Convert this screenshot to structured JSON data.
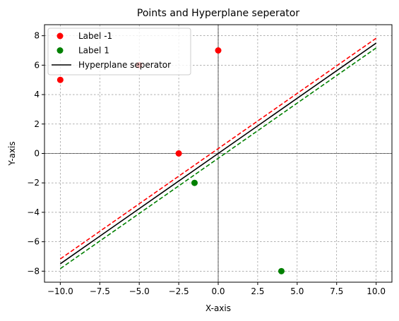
{
  "chart_data": {
    "type": "scatter",
    "title": "Points and Hyperplane seperator",
    "xlabel": "X-axis",
    "ylabel": "Y-axis",
    "xlim": [
      -11,
      11
    ],
    "ylim": [
      -8.75,
      8.75
    ],
    "xticks": [
      -10,
      -7.5,
      -5,
      -2.5,
      0,
      2.5,
      5,
      7.5,
      10
    ],
    "xtick_labels": [
      "−10.0",
      "−7.5",
      "−5.0",
      "−2.5",
      "0.0",
      "2.5",
      "5.0",
      "7.5",
      "10.0"
    ],
    "yticks": [
      -8,
      -6,
      -4,
      -2,
      0,
      2,
      4,
      6,
      8
    ],
    "ytick_labels": [
      "−8",
      "−6",
      "−4",
      "−2",
      "0",
      "2",
      "4",
      "6",
      "8"
    ],
    "grid": true,
    "legend_position": "top-left",
    "series": [
      {
        "name": "Label -1",
        "kind": "scatter",
        "color": "#ff0000",
        "points": [
          [
            -10,
            5
          ],
          [
            -5,
            6
          ],
          [
            0,
            7
          ],
          [
            -2.5,
            0
          ]
        ]
      },
      {
        "name": "Label 1",
        "kind": "scatter",
        "color": "#008000",
        "points": [
          [
            -1.5,
            -2
          ],
          [
            4,
            -8
          ]
        ]
      },
      {
        "name": "Hyperplane seperator",
        "kind": "line",
        "color": "#000000",
        "style": "solid",
        "points": [
          [
            -10,
            -7.5
          ],
          [
            10,
            7.5
          ]
        ]
      },
      {
        "kind": "line",
        "color": "#ff0000",
        "style": "dashed",
        "points": [
          [
            -10,
            -7.17
          ],
          [
            10,
            7.83
          ]
        ]
      },
      {
        "kind": "line",
        "color": "#008000",
        "style": "dashed",
        "points": [
          [
            -10,
            -7.83
          ],
          [
            10,
            7.17
          ]
        ]
      }
    ]
  }
}
